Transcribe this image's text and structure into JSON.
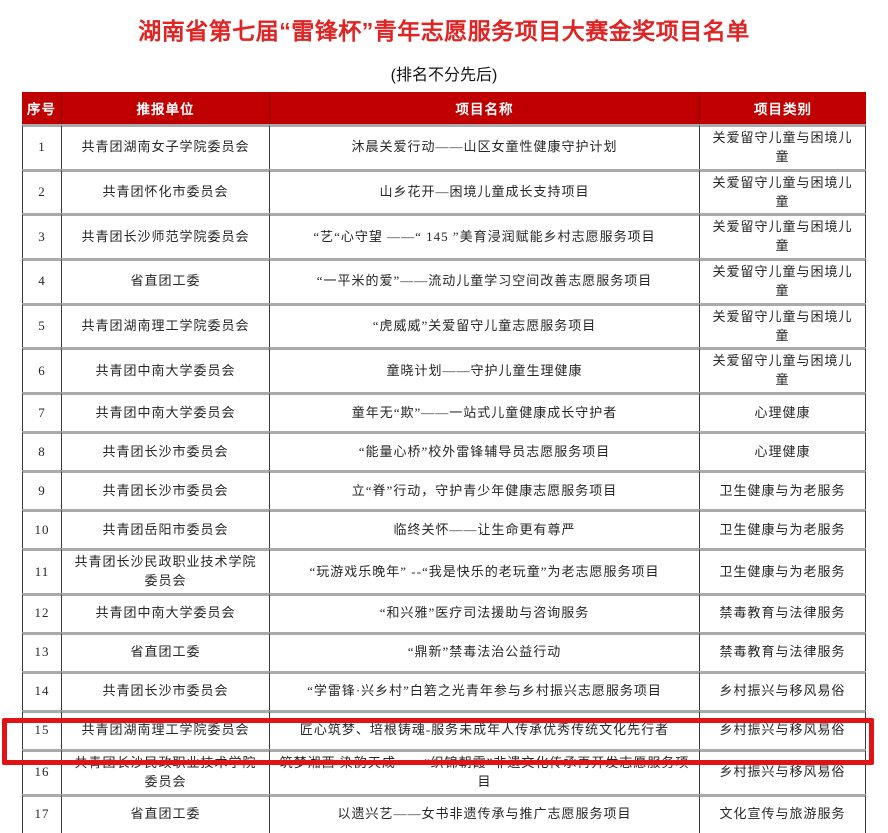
{
  "page": {
    "title": "湖南省第七届“雷锋杯”青年志愿服务项目大赛金奖项目名单",
    "subtitle": "(排名不分先后)"
  },
  "colors": {
    "title_red": "#e02424",
    "header_bg": "#c00000",
    "header_text": "#ffffff",
    "body_text": "#262626",
    "grid_horizontal": "#aaaaaa",
    "grid_vertical": "#3a3a3a",
    "highlight_red": "#e01414"
  },
  "table": {
    "headers": [
      "序号",
      "推报单位",
      "项目名称",
      "项目类别"
    ],
    "highlighted_row_no": "15",
    "rows": [
      {
        "no": "1",
        "unit": "共青团湖南女子学院委员会",
        "project": "沐晨关爱行动——山区女童性健康守护计划",
        "category": "关爱留守儿童与困境儿童",
        "highlighted": false
      },
      {
        "no": "2",
        "unit": "共青团怀化市委员会",
        "project": "山乡花开—困境儿童成长支持项目",
        "category": "关爱留守儿童与困境儿童",
        "highlighted": false
      },
      {
        "no": "3",
        "unit": "共青团长沙师范学院委员会",
        "project": "“艺“心守望 ——“ 145 ”美育浸润赋能乡村志愿服务项目",
        "category": "关爱留守儿童与困境儿童",
        "highlighted": false
      },
      {
        "no": "4",
        "unit": "省直团工委",
        "project": "“一平米的爱”——流动儿童学习空间改善志愿服务项目",
        "category": "关爱留守儿童与困境儿童",
        "highlighted": false
      },
      {
        "no": "5",
        "unit": "共青团湖南理工学院委员会",
        "project": "“虎威威”关爱留守儿童志愿服务项目",
        "category": "关爱留守儿童与困境儿童",
        "highlighted": false
      },
      {
        "no": "6",
        "unit": "共青团中南大学委员会",
        "project": "童晓计划——守护儿童生理健康",
        "category": "关爱留守儿童与困境儿童",
        "highlighted": false
      },
      {
        "no": "7",
        "unit": "共青团中南大学委员会",
        "project": "童年无“欺”——一站式儿童健康成长守护者",
        "category": "心理健康",
        "highlighted": false
      },
      {
        "no": "8",
        "unit": "共青团长沙市委员会",
        "project": "“能量心桥”校外雷锋辅导员志愿服务项目",
        "category": "心理健康",
        "highlighted": false
      },
      {
        "no": "9",
        "unit": "共青团长沙市委员会",
        "project": "立“脊”行动，守护青少年健康志愿服务项目",
        "category": "卫生健康与为老服务",
        "highlighted": false
      },
      {
        "no": "10",
        "unit": "共青团岳阳市委员会",
        "project": "临终关怀——让生命更有尊严",
        "category": "卫生健康与为老服务",
        "highlighted": false
      },
      {
        "no": "11",
        "unit": "共青团长沙民政职业技术学院委员会",
        "project": "“玩游戏乐晚年” --“我是快乐的老玩童”为老志愿服务项目",
        "category": "卫生健康与为老服务",
        "highlighted": false
      },
      {
        "no": "12",
        "unit": "共青团中南大学委员会",
        "project": "“和兴雅”医疗司法援助与咨询服务",
        "category": "禁毒教育与法律服务",
        "highlighted": false
      },
      {
        "no": "13",
        "unit": "省直团工委",
        "project": "“鼎新”禁毒法治公益行动",
        "category": "禁毒教育与法律服务",
        "highlighted": false
      },
      {
        "no": "14",
        "unit": "共青团长沙市委员会",
        "project": "“学雷锋·兴乡村”白箬之光青年参与乡村振兴志愿服务项目",
        "category": "乡村振兴与移风易俗",
        "highlighted": false
      },
      {
        "no": "15",
        "unit": "共青团湖南理工学院委员会",
        "project": "匠心筑梦、培根铸魂-服务未成年人传承优秀传统文化先行者",
        "category": "乡村振兴与移风易俗",
        "highlighted": true
      },
      {
        "no": "16",
        "unit": "共青团长沙民政职业技术学院委员会",
        "project": "筑梦湘西 染韵天成——“织锦朝霞”非遗文化传承再开发志愿服务项目",
        "category": "乡村振兴与移风易俗",
        "highlighted": false
      },
      {
        "no": "17",
        "unit": "省直团工委",
        "project": "以遗兴艺——女书非遗传承与推广志愿服务项目",
        "category": "文化宣传与旅游服务",
        "highlighted": false
      }
    ]
  }
}
